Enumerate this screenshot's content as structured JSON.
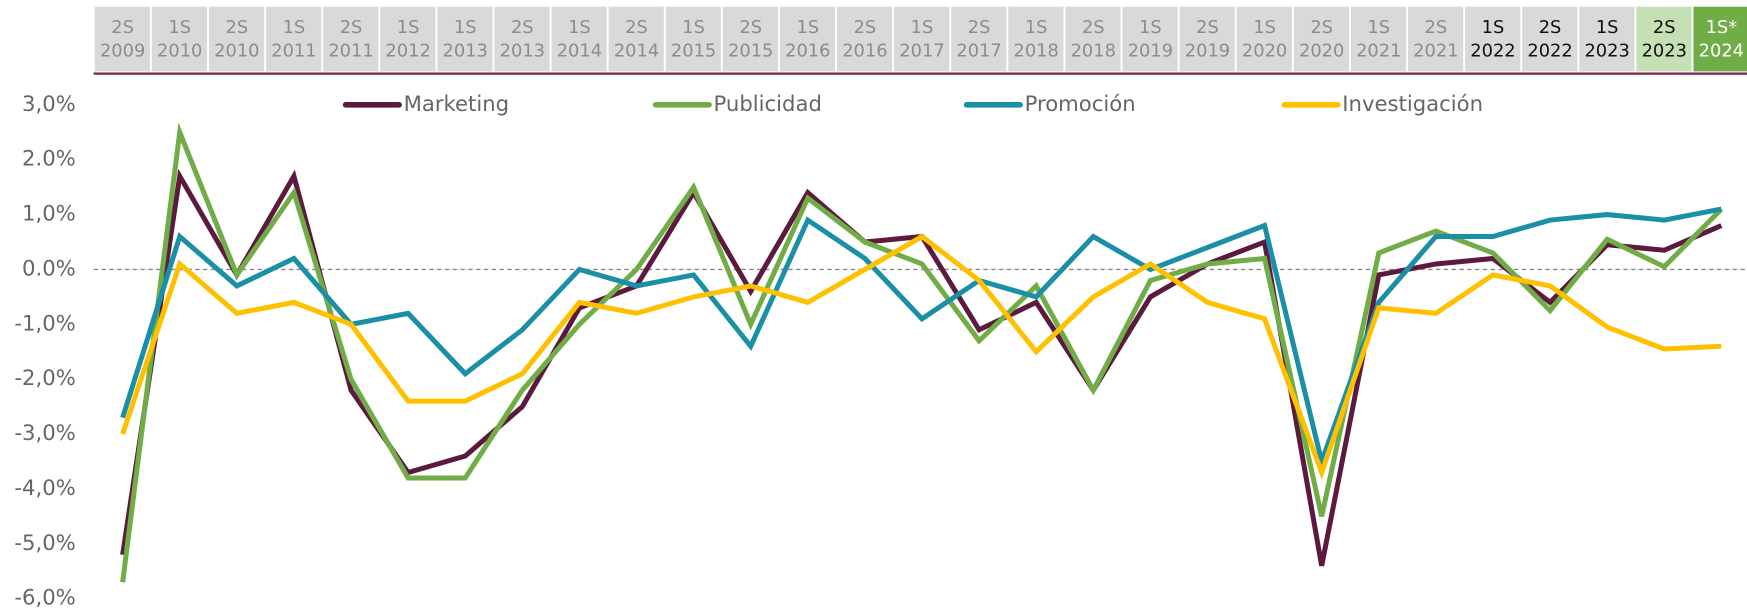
{
  "chart_data": {
    "type": "line",
    "categories": [
      "2S 2009",
      "1S 2010",
      "2S 2010",
      "1S 2011",
      "2S 2011",
      "1S 2012",
      "1S 2013",
      "2S 2013",
      "1S 2014",
      "2S 2014",
      "1S 2015",
      "2S 2015",
      "1S 2016",
      "2S 2016",
      "1S 2017",
      "2S 2017",
      "1S 2018",
      "2S 2018",
      "1S 2019",
      "2S 2019",
      "1S 2020",
      "2S 2020",
      "1S 2021",
      "2S 2021",
      "1S 2022",
      "2S 2022",
      "1S 2023",
      "2S 2023",
      "1S* 2024"
    ],
    "series": [
      {
        "name": "Marketing",
        "color": "#5c1a3e",
        "values": [
          -5.2,
          1.7,
          -0.1,
          1.7,
          -2.2,
          -3.7,
          -3.4,
          -2.5,
          -0.7,
          -0.3,
          1.4,
          -0.4,
          1.4,
          0.5,
          0.6,
          -1.1,
          -0.6,
          -2.2,
          -0.5,
          0.1,
          0.5,
          -5.4,
          -0.1,
          0.1,
          0.2,
          -0.6,
          0.45,
          0.35,
          0.8
        ]
      },
      {
        "name": "Publicidad",
        "color": "#70ad47",
        "values": [
          -5.7,
          2.5,
          -0.1,
          1.4,
          -2.0,
          -3.8,
          -3.8,
          -2.2,
          -1.0,
          0.0,
          1.5,
          -1.0,
          1.3,
          0.5,
          0.1,
          -1.3,
          -0.3,
          -2.2,
          -0.2,
          0.1,
          0.2,
          -4.5,
          0.3,
          0.7,
          0.3,
          -0.75,
          0.55,
          0.05,
          1.1
        ]
      },
      {
        "name": "Promoción",
        "color": "#1a8fa6",
        "values": [
          -2.7,
          0.6,
          -0.3,
          0.2,
          -1.0,
          -0.8,
          -1.9,
          -1.1,
          0.0,
          -0.3,
          -0.1,
          -1.4,
          0.9,
          0.2,
          -0.9,
          -0.2,
          -0.5,
          0.6,
          0.0,
          0.4,
          0.8,
          -3.5,
          -0.6,
          0.6,
          0.6,
          0.9,
          1.0,
          0.9,
          1.1
        ]
      },
      {
        "name": "Investigación",
        "color": "#ffc000",
        "values": [
          -3.0,
          0.1,
          -0.8,
          -0.6,
          -1.0,
          -2.4,
          -2.4,
          -1.9,
          -0.6,
          -0.8,
          -0.5,
          -0.3,
          -0.6,
          0.0,
          0.6,
          -0.2,
          -1.5,
          -0.5,
          0.1,
          -0.6,
          -0.9,
          -3.7,
          -0.7,
          -0.8,
          -0.1,
          -0.3,
          -1.05,
          -1.45,
          -1.4
        ]
      }
    ],
    "ylim": [
      -6,
      3
    ],
    "yticks": [
      {
        "value": 3,
        "label": "3,0%"
      },
      {
        "value": 2,
        "label": "2.0%"
      },
      {
        "value": 1,
        "label": "1,0%"
      },
      {
        "value": 0,
        "label": "0.0%"
      },
      {
        "value": -1,
        "label": "-1,0%"
      },
      {
        "value": -2,
        "label": "-2,0%"
      },
      {
        "value": -3,
        "label": "-3,0%"
      },
      {
        "value": -4,
        "label": "-4,0%"
      },
      {
        "value": -5,
        "label": "-5,0%"
      },
      {
        "value": -6,
        "label": "-6,0%"
      }
    ],
    "legend": "top"
  }
}
